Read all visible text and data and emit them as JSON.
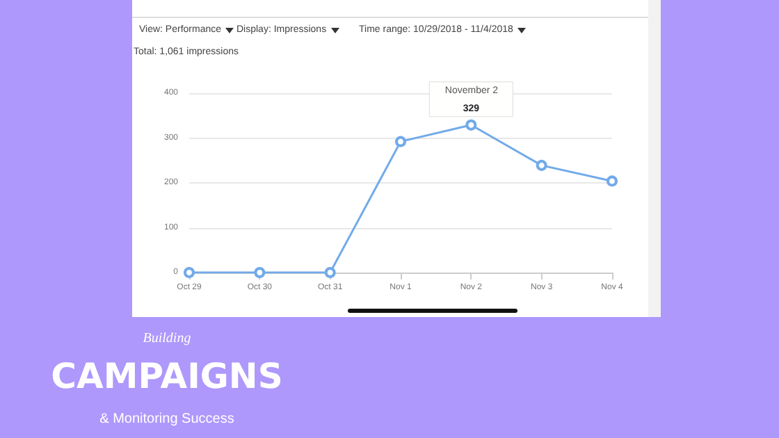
{
  "chart_data": {
    "type": "line",
    "title": "CAMPAIGNS",
    "subtitle": "& Monitoring Success",
    "annotations": [
      "View: Performance",
      "Display: Impressions",
      "Time range: 10/29/2018 - 11/4/2018",
      "Total: 1,061 impressions",
      "November 2",
      "Building"
    ],
    "categories": [
      "Oct 29",
      "Oct 30",
      "Oct 31",
      "Nov 1",
      "Nov 2",
      "Nov 3",
      "Nov 4"
    ],
    "series": [
      {
        "color": "#72aaea",
        "values": [
          0,
          0,
          0,
          292,
          329,
          239,
          204
        ],
        "value_labels": [
          null,
          null,
          null,
          null,
          "329",
          null,
          null
        ]
      }
    ],
    "ylim": [
      0,
      400
    ],
    "yticks": [
      0,
      100,
      200,
      300,
      400
    ],
    "grid": "y",
    "marker": "circle",
    "line_style": "solid"
  }
}
